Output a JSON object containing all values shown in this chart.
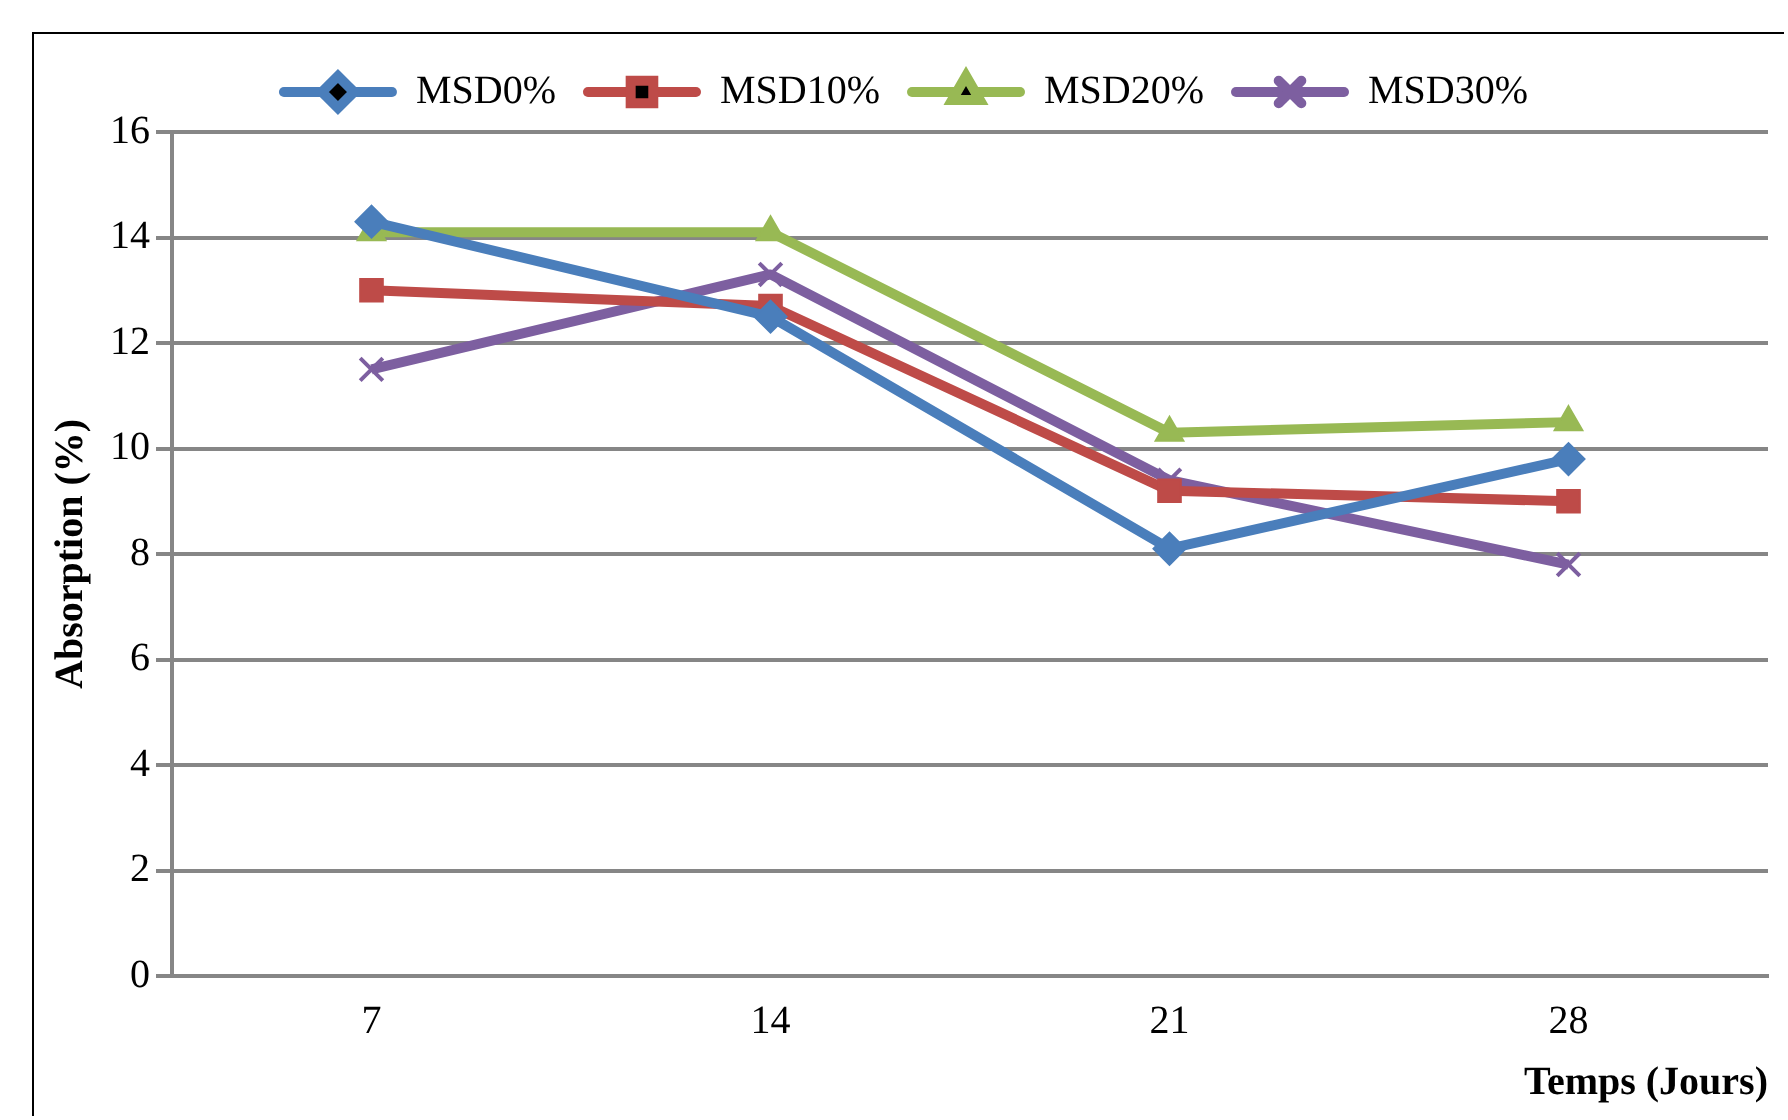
{
  "chart_data": {
    "type": "line",
    "xlabel": "Temps (Jours)",
    "ylabel": "Absorption (%)",
    "categories": [
      "7",
      "14",
      "21",
      "28"
    ],
    "series": [
      {
        "name": "MSD0%",
        "color": "#4a7ebb",
        "marker": "diamond",
        "values": [
          14.3,
          12.5,
          8.1,
          9.8
        ]
      },
      {
        "name": "MSD10%",
        "color": "#be4b48",
        "marker": "square",
        "values": [
          13.0,
          12.7,
          9.2,
          9.0
        ]
      },
      {
        "name": "MSD20%",
        "color": "#98b954",
        "marker": "triangle",
        "values": [
          14.1,
          14.1,
          10.3,
          10.5
        ]
      },
      {
        "name": "MSD30%",
        "color": "#7d5fa0",
        "marker": "cross",
        "values": [
          11.5,
          13.3,
          9.4,
          7.8
        ]
      }
    ],
    "ylim": [
      0,
      16
    ],
    "yticks": [
      0,
      2,
      4,
      6,
      8,
      10,
      12,
      14,
      16
    ],
    "grid": "y",
    "legend": "top"
  }
}
